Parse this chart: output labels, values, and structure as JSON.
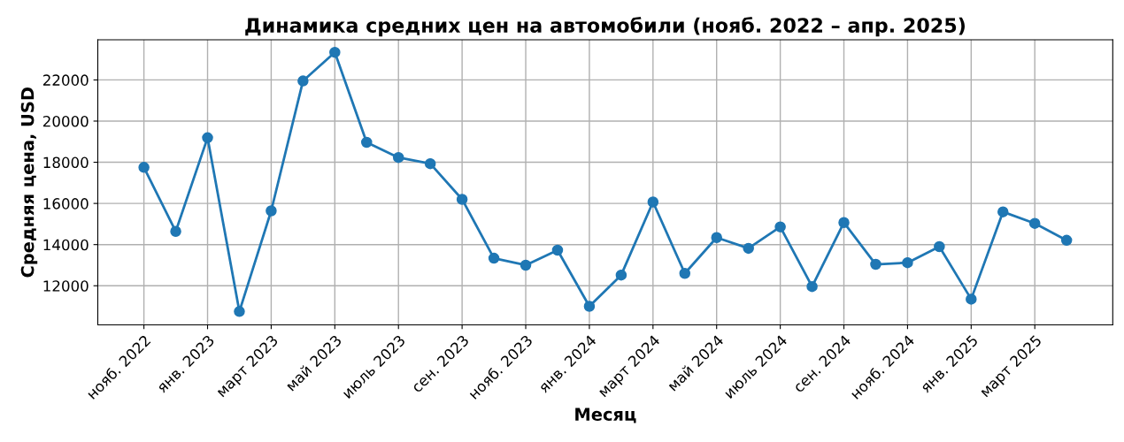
{
  "chart_data": {
    "type": "line",
    "title": "Динамика средних цен на автомобили (нояб. 2022 – апр. 2025)",
    "xlabel": "Месяц",
    "ylabel": "Средняя цена, USD",
    "categories": [
      "нояб. 2022",
      null,
      "янв. 2023",
      null,
      "март 2023",
      null,
      "май 2023",
      null,
      "июль 2023",
      null,
      "сен. 2023",
      null,
      "нояб. 2023",
      null,
      "янв. 2024",
      null,
      "март 2024",
      null,
      "май 2024",
      null,
      "июль 2024",
      null,
      "сен. 2024",
      null,
      "нояб. 2024",
      null,
      "янв. 2025",
      null,
      "март 2025",
      null
    ],
    "series": [
      {
        "color": "#1f77b4",
        "values": [
          17750,
          14640,
          19190,
          10750,
          15640,
          21950,
          23340,
          18970,
          18230,
          17930,
          16200,
          13340,
          13000,
          13730,
          11000,
          12520,
          16070,
          12600,
          14340,
          13820,
          14860,
          11960,
          15070,
          13040,
          13120,
          13900,
          11350,
          15590,
          15030,
          14210
        ]
      }
    ],
    "ylim": [
      10100,
      23950
    ],
    "yticks": [
      12000,
      14000,
      16000,
      18000,
      20000,
      22000
    ],
    "grid": true,
    "marker": "circle",
    "line_style": "solid",
    "legend": false
  }
}
